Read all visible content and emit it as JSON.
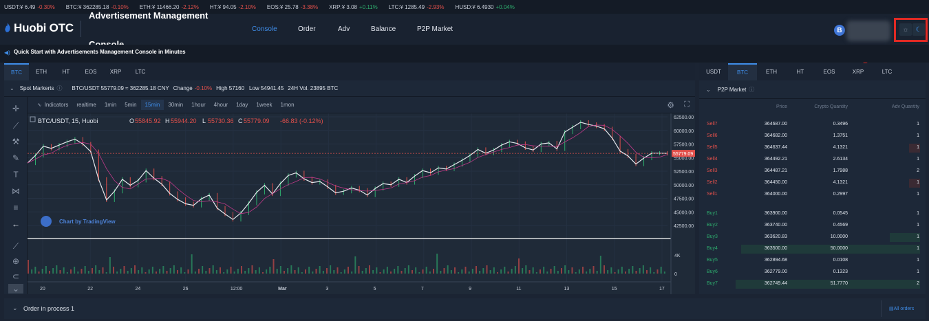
{
  "ticker": [
    {
      "pair": "USDT:¥ 6.49",
      "change": "-0.30%",
      "dir": "neg"
    },
    {
      "pair": "BTC:¥ 362285.18",
      "change": "-0.10%",
      "dir": "neg"
    },
    {
      "pair": "ETH:¥ 11466.20",
      "change": "-2.12%",
      "dir": "neg"
    },
    {
      "pair": "HT:¥ 94.05",
      "change": "-2.10%",
      "dir": "neg"
    },
    {
      "pair": "EOS:¥ 25.78",
      "change": "-3.38%",
      "dir": "neg"
    },
    {
      "pair": "XRP:¥ 3.08",
      "change": "+0.11%",
      "dir": "pos"
    },
    {
      "pair": "LTC:¥ 1285.49",
      "change": "-2.93%",
      "dir": "neg"
    },
    {
      "pair": "HUSD:¥ 6.4930",
      "change": "+0.04%",
      "dir": "pos"
    }
  ],
  "header": {
    "logo_text": "Huobi OTC",
    "overlay_title": "Advertisement Management",
    "overlay_sub": "Console",
    "nav": [
      "Console",
      "Order",
      "Adv",
      "Balance",
      "P2P Market"
    ],
    "avatar_letter": "B"
  },
  "quickstart": "Quick Start with Advertisements Management Console in Minutes",
  "left_tabs": [
    "BTC",
    "ETH",
    "HT",
    "EOS",
    "XRP",
    "LTC"
  ],
  "market": {
    "title": "Spot Markerts",
    "pair": "BTC/USDT 55779.09 ≈ 362285.18 CNY",
    "change_label": "Change",
    "change": "-0.10%",
    "high": "High 57160",
    "low": "Low 54941.45",
    "vol": "24H Vol. 23895 BTC"
  },
  "chart_toolbar": {
    "indicators": "Indicators",
    "intervals": [
      "realtime",
      "1min",
      "5min",
      "15min",
      "30min",
      "1hour",
      "4hour",
      "1day",
      "1week",
      "1mon"
    ],
    "active": "15min"
  },
  "chart_data": {
    "type": "line",
    "symbol_label": "BTC/USDT, 15, Huobi",
    "ohlc": {
      "O": "55845.92",
      "H": "55944.20",
      "L": "55730.36",
      "C": "55779.09",
      "chg": "-66.83 (-0.12%)"
    },
    "last_price_label": "55779.09",
    "yticks": [
      "62500.00",
      "60000.00",
      "57500.00",
      "55000.00",
      "52500.00",
      "50000.00",
      "47500.00",
      "45000.00",
      "42500.00"
    ],
    "ylim": [
      42500,
      62500
    ],
    "xticks": [
      "20",
      "22",
      "24",
      "26",
      "12:00",
      "Mar",
      "3",
      "5",
      "7",
      "9",
      "11",
      "13",
      "15",
      "17"
    ],
    "volume_tick": "4K",
    "volume_zero": "0",
    "watermark": "Chart by TradingView",
    "price_series": [
      54000,
      55400,
      57100,
      56700,
      57300,
      57900,
      58400,
      57500,
      56100,
      51000,
      47200,
      48800,
      51000,
      49900,
      50800,
      52600,
      51200,
      50100,
      48400,
      47300,
      46500,
      46200,
      47400,
      48100,
      45700,
      44600,
      43600,
      44800,
      46600,
      48600,
      49900,
      48300,
      50200,
      51700,
      52200,
      51100,
      50400,
      50600,
      49600,
      48500,
      48800,
      49400,
      49000,
      48100,
      49300,
      50200,
      50000,
      51000,
      50400,
      51600,
      52600,
      52200,
      53100,
      52900,
      53700,
      54500,
      55400,
      56500,
      55800,
      56400,
      57300,
      57900,
      57600,
      56800,
      56400,
      57500,
      57700,
      56600,
      59700,
      60600,
      61500,
      61100,
      60800,
      60300,
      58600,
      56200,
      55300,
      53800,
      54900,
      55800,
      55800,
      55779
    ]
  },
  "right_tabs": [
    "USDT",
    "BTC",
    "ETH",
    "HT",
    "EOS",
    "XRP",
    "LTC"
  ],
  "p2p": {
    "title": "P2P Market",
    "headers": [
      "Price",
      "Crypto Quantity",
      "Adv Quantity"
    ],
    "sells": [
      {
        "label": "Sell7",
        "price": "364687.00",
        "qty": "0.3496",
        "adv": "1"
      },
      {
        "label": "Sell6",
        "price": "364682.00",
        "qty": "1.3751",
        "adv": "1"
      },
      {
        "label": "Sell5",
        "price": "364637.44",
        "qty": "4.1321",
        "adv": "1"
      },
      {
        "label": "Sell4",
        "price": "364492.21",
        "qty": "2.6134",
        "adv": "1"
      },
      {
        "label": "Sell3",
        "price": "364487.21",
        "qty": "1.7988",
        "adv": "2"
      },
      {
        "label": "Sell2",
        "price": "364450.00",
        "qty": "4.1321",
        "adv": "1"
      },
      {
        "label": "Sell1",
        "price": "364000.00",
        "qty": "0.2997",
        "adv": "1"
      }
    ],
    "buys": [
      {
        "label": "Buy1",
        "price": "363900.00",
        "qty": "0.0545",
        "adv": "1"
      },
      {
        "label": "Buy2",
        "price": "363740.00",
        "qty": "0.4569",
        "adv": "1"
      },
      {
        "label": "Buy3",
        "price": "363620.83",
        "qty": "10.0000",
        "adv": "1"
      },
      {
        "label": "Buy4",
        "price": "363500.00",
        "qty": "50.0000",
        "adv": "1"
      },
      {
        "label": "Buy5",
        "price": "362894.68",
        "qty": "0.0108",
        "adv": "1"
      },
      {
        "label": "Buy6",
        "price": "362779.00",
        "qty": "0.1323",
        "adv": "1"
      },
      {
        "label": "Buy7",
        "price": "362749.44",
        "qty": "51.7770",
        "adv": "2"
      }
    ]
  },
  "orders": {
    "label": "Order in process 1",
    "all_button": "All orders"
  },
  "colors": {
    "accent": "#3f8de8",
    "sell": "#e2504b",
    "buy": "#2eae6e",
    "highlight": "#e12a24"
  }
}
